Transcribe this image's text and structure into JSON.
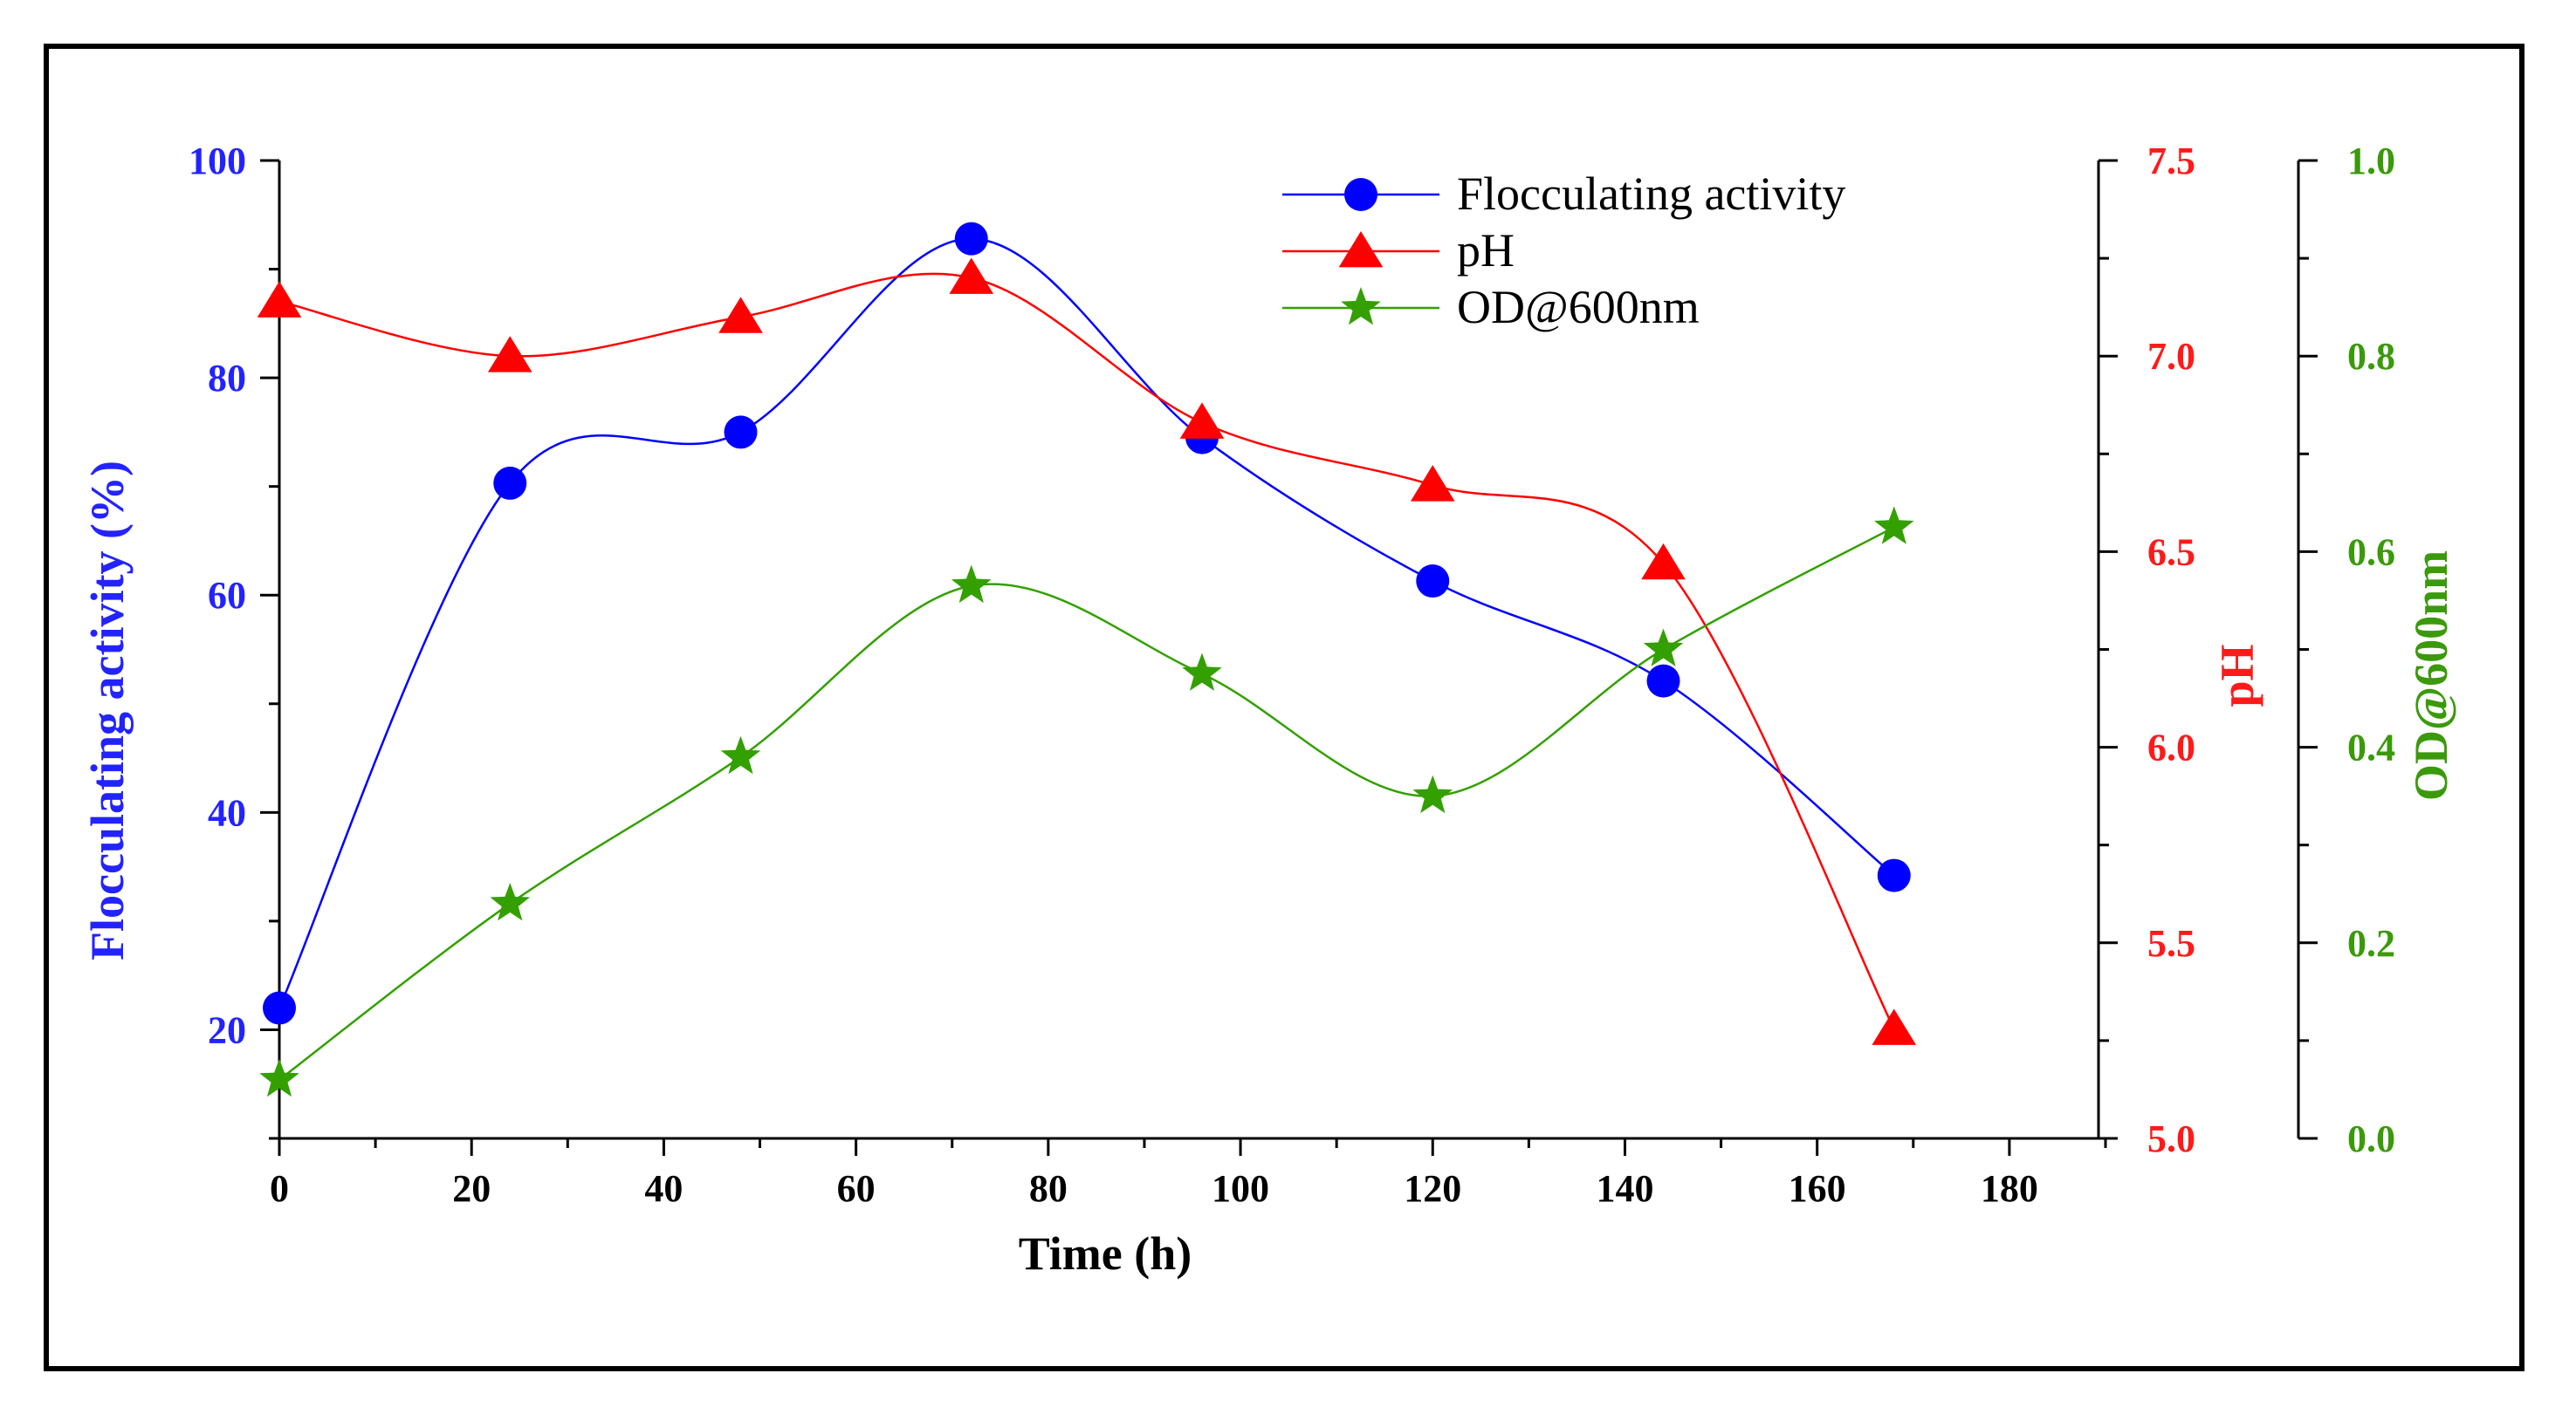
{
  "chart_data": {
    "type": "line",
    "xlabel": "Time (h)",
    "xlim": [
      0,
      190
    ],
    "xticks": [
      0,
      20,
      40,
      60,
      80,
      100,
      120,
      140,
      160,
      180
    ],
    "x": [
      0,
      24,
      48,
      72,
      96,
      120,
      144,
      168
    ],
    "axes": [
      {
        "id": "left",
        "label": "Flocculating activity (%)",
        "range": [
          10,
          100
        ],
        "ticks": [
          20,
          40,
          60,
          80,
          100
        ],
        "minor_ticks": [
          10,
          30,
          50,
          70,
          90
        ],
        "color": "#2323ff"
      },
      {
        "id": "ph",
        "label": "pH",
        "range": [
          5.0,
          7.5
        ],
        "ticks": [
          5.0,
          5.5,
          6.0,
          6.5,
          7.0,
          7.5
        ],
        "tick_labels": [
          "5.0",
          "5.5",
          "6.0",
          "6.5",
          "7.0",
          "7.5"
        ],
        "minor_ticks": [
          5.25,
          5.75,
          6.25,
          6.75,
          7.25
        ],
        "color": "#ff1a1a"
      },
      {
        "id": "od",
        "label": "OD@600nm",
        "range": [
          0.0,
          1.0
        ],
        "ticks": [
          0.0,
          0.2,
          0.4,
          0.6,
          0.8,
          1.0
        ],
        "tick_labels": [
          "0.0",
          "0.2",
          "0.4",
          "0.6",
          "0.8",
          "1.0"
        ],
        "minor_ticks": [
          0.1,
          0.3,
          0.5,
          0.7,
          0.9
        ],
        "color": "#3a9a0a"
      }
    ],
    "series": [
      {
        "name": "Flocculating activity",
        "axis": "left",
        "marker": "circle",
        "color": "#0000ff",
        "values": [
          22,
          70.3,
          75,
          92.8,
          74.5,
          61.3,
          52.1,
          34.2
        ]
      },
      {
        "name": "pH",
        "axis": "ph",
        "marker": "triangle",
        "color": "#ff0000",
        "values": [
          7.14,
          7.0,
          7.1,
          7.2,
          6.83,
          6.67,
          6.47,
          5.28
        ]
      },
      {
        "name": "OD@600nm",
        "axis": "od",
        "marker": "star",
        "color": "#33a000",
        "values": [
          0.06,
          0.24,
          0.39,
          0.565,
          0.475,
          0.35,
          0.5,
          0.625
        ]
      }
    ],
    "legend_position": "top-right"
  }
}
